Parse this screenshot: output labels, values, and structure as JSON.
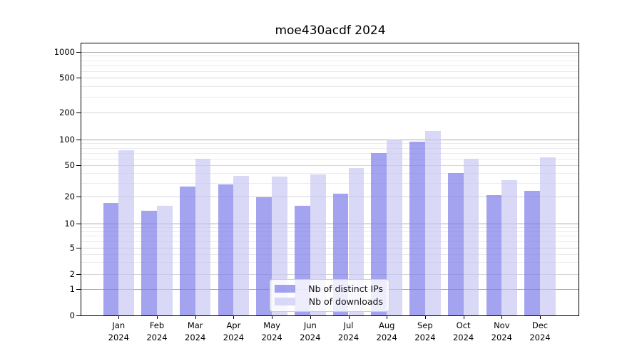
{
  "title": "moe430acdf 2024",
  "colors": {
    "distinct_ips_bar": "rgba(124,124,232,0.70)",
    "downloads_bar": "rgba(197,197,243,0.65)",
    "grid_decade": "#a9a9a9",
    "grid_mid": "#d6d6d6",
    "grid_minor": "#ebebeb",
    "axis": "#000000"
  },
  "legend": {
    "items": [
      {
        "label": "Nb of distinct IPs"
      },
      {
        "label": "Nb of downloads"
      }
    ]
  },
  "chart_data": {
    "type": "bar",
    "title": "moe430acdf 2024",
    "x": {
      "months": [
        "Jan",
        "Feb",
        "Mar",
        "Apr",
        "May",
        "Jun",
        "Jul",
        "Aug",
        "Sep",
        "Oct",
        "Nov",
        "Dec"
      ],
      "year": "2024"
    },
    "categories": [
      "Jan 2024",
      "Feb 2024",
      "Mar 2024",
      "Apr 2024",
      "May 2024",
      "Jun 2024",
      "Jul 2024",
      "Aug 2024",
      "Sep 2024",
      "Oct 2024",
      "Nov 2024",
      "Dec 2024"
    ],
    "series": [
      {
        "name": "Nb of distinct IPs",
        "color": "rgba(124,124,232,0.70)",
        "values": [
          17,
          14,
          27,
          29,
          20,
          16,
          22,
          70,
          95,
          40,
          21,
          24
        ]
      },
      {
        "name": "Nb of downloads",
        "color": "rgba(197,197,243,0.65)",
        "values": [
          75,
          16,
          60,
          37,
          36,
          39,
          47,
          100,
          125,
          60,
          33,
          62
        ]
      }
    ],
    "y_axis": {
      "scale": "log-like (0 baseline, log above 1)",
      "ticks": [
        0,
        1,
        2,
        5,
        10,
        20,
        50,
        100,
        200,
        500,
        1000
      ],
      "minor_ticks": [
        3,
        4,
        6,
        7,
        8,
        9,
        30,
        40,
        60,
        70,
        80,
        90,
        300,
        400,
        600,
        700,
        800,
        900
      ],
      "range": [
        0,
        1300
      ]
    },
    "xlabel": "",
    "ylabel": "",
    "legend_position": "lower center, inside plot",
    "grid": "both (major and minor horizontal gridlines)"
  }
}
